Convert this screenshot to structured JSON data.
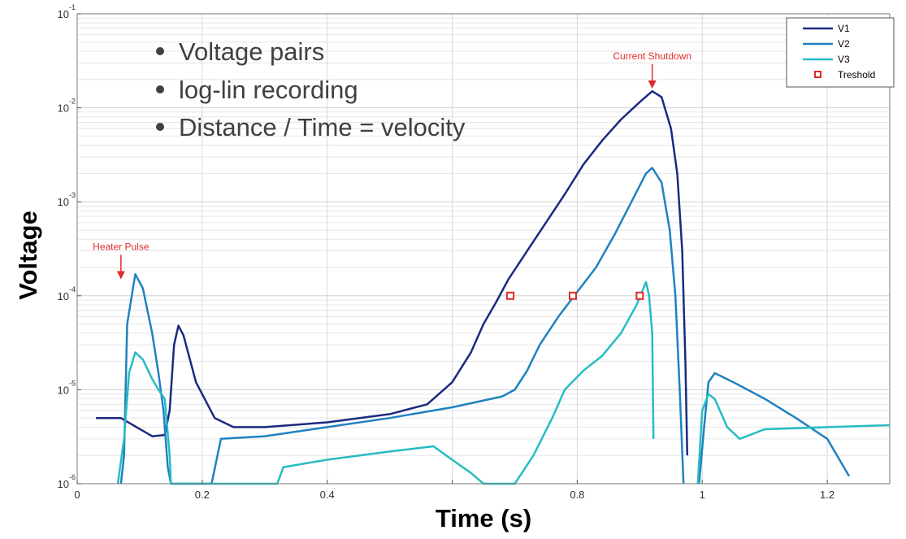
{
  "chart_data": {
    "type": "line",
    "xlabel": "Time (s)",
    "ylabel": "Voltage",
    "xlim": [
      0,
      1.3
    ],
    "ylim": [
      1e-06,
      0.1
    ],
    "yscale": "log",
    "grid": true,
    "legend_position": "top-right",
    "x_ticks": [
      0,
      0.2,
      0.4,
      0.6,
      0.8,
      1,
      1.2
    ],
    "x_tick_labels": [
      "0",
      "0.2",
      "0.4",
      "",
      "0.8",
      "1",
      "1.2"
    ],
    "y_ticks": [
      {
        "value": 1e-06,
        "base": "10",
        "exp": "-6"
      },
      {
        "value": 1e-05,
        "base": "10",
        "exp": "-5"
      },
      {
        "value": 0.0001,
        "base": "10",
        "exp": "-4"
      },
      {
        "value": 0.001,
        "base": "10",
        "exp": "-3"
      },
      {
        "value": 0.01,
        "base": "10",
        "exp": "-2"
      },
      {
        "value": 0.1,
        "base": "10",
        "exp": "-1"
      }
    ],
    "series": [
      {
        "name": "V1",
        "color": "#1b2a80",
        "points": [
          [
            0.03,
            5e-06
          ],
          [
            0.07,
            5e-06
          ],
          [
            0.095,
            4e-06
          ],
          [
            0.12,
            3.2e-06
          ],
          [
            0.14,
            3.3e-06
          ],
          [
            0.148,
            6e-06
          ],
          [
            0.155,
            3e-05
          ],
          [
            0.162,
            4.8e-05
          ],
          [
            0.17,
            3.8e-05
          ],
          [
            0.19,
            1.2e-05
          ],
          [
            0.22,
            5e-06
          ],
          [
            0.25,
            4e-06
          ],
          [
            0.3,
            4e-06
          ],
          [
            0.4,
            4.5e-06
          ],
          [
            0.5,
            5.5e-06
          ],
          [
            0.56,
            7e-06
          ],
          [
            0.6,
            1.2e-05
          ],
          [
            0.63,
            2.5e-05
          ],
          [
            0.65,
            5e-05
          ],
          [
            0.67,
            8.5e-05
          ],
          [
            0.69,
            0.00015
          ],
          [
            0.72,
            0.0003
          ],
          [
            0.75,
            0.0006
          ],
          [
            0.78,
            0.0012
          ],
          [
            0.81,
            0.0025
          ],
          [
            0.84,
            0.0045
          ],
          [
            0.87,
            0.0075
          ],
          [
            0.9,
            0.0115
          ],
          [
            0.92,
            0.015
          ],
          [
            0.935,
            0.013
          ],
          [
            0.95,
            0.006
          ],
          [
            0.96,
            0.002
          ],
          [
            0.968,
            0.0003
          ],
          [
            0.973,
            2e-05
          ],
          [
            0.976,
            2e-06
          ]
        ]
      },
      {
        "name": "V2",
        "color": "#1f82c0",
        "points": [
          [
            0.07,
            1e-06
          ],
          [
            0.075,
            2e-06
          ],
          [
            0.08,
            5e-05
          ],
          [
            0.093,
            0.00017
          ],
          [
            0.105,
            0.00012
          ],
          [
            0.12,
            4e-05
          ],
          [
            0.13,
            1.5e-05
          ],
          [
            0.138,
            6e-06
          ],
          [
            0.145,
            1.5e-06
          ],
          [
            0.15,
            1e-06
          ],
          [
            0.215,
            1e-06
          ],
          [
            0.23,
            3e-06
          ],
          [
            0.3,
            3.2e-06
          ],
          [
            0.4,
            4e-06
          ],
          [
            0.5,
            5e-06
          ],
          [
            0.6,
            6.5e-06
          ],
          [
            0.68,
            8.5e-06
          ],
          [
            0.7,
            1e-05
          ],
          [
            0.72,
            1.6e-05
          ],
          [
            0.74,
            3e-05
          ],
          [
            0.77,
            6e-05
          ],
          [
            0.8,
            0.00011
          ],
          [
            0.83,
            0.0002
          ],
          [
            0.86,
            0.00045
          ],
          [
            0.89,
            0.0011
          ],
          [
            0.91,
            0.002
          ],
          [
            0.92,
            0.0023
          ],
          [
            0.935,
            0.0016
          ],
          [
            0.948,
            0.0005
          ],
          [
            0.957,
            0.0001
          ],
          [
            0.964,
            1e-05
          ],
          [
            0.97,
            1e-06
          ]
        ]
      },
      {
        "name": "V3",
        "color": "#26bcc4",
        "points": [
          [
            0.065,
            1e-06
          ],
          [
            0.075,
            3e-06
          ],
          [
            0.083,
            1.5e-05
          ],
          [
            0.093,
            2.5e-05
          ],
          [
            0.105,
            2.1e-05
          ],
          [
            0.12,
            1.3e-05
          ],
          [
            0.13,
            1e-05
          ],
          [
            0.14,
            8e-06
          ],
          [
            0.148,
            2e-06
          ],
          [
            0.15,
            1e-06
          ],
          [
            0.32,
            1e-06
          ],
          [
            0.33,
            1.5e-06
          ],
          [
            0.4,
            1.8e-06
          ],
          [
            0.5,
            2.2e-06
          ],
          [
            0.57,
            2.5e-06
          ],
          [
            0.6,
            1.8e-06
          ],
          [
            0.63,
            1.3e-06
          ],
          [
            0.65,
            1e-06
          ],
          [
            0.7,
            1e-06
          ],
          [
            0.73,
            2e-06
          ],
          [
            0.76,
            5e-06
          ],
          [
            0.78,
            1e-05
          ],
          [
            0.81,
            1.6e-05
          ],
          [
            0.84,
            2.3e-05
          ],
          [
            0.87,
            4e-05
          ],
          [
            0.895,
            8e-05
          ],
          [
            0.91,
            0.00014
          ],
          [
            0.915,
            0.0001
          ],
          [
            0.92,
            4e-05
          ],
          [
            0.922,
            3e-06
          ]
        ]
      }
    ],
    "right_tails": [
      {
        "series": "V2",
        "points": [
          [
            0.995,
            1e-06
          ],
          [
            1.003,
            4e-06
          ],
          [
            1.01,
            1.2e-05
          ],
          [
            1.02,
            1.5e-05
          ],
          [
            1.05,
            1.2e-05
          ],
          [
            1.1,
            8e-06
          ],
          [
            1.15,
            5e-06
          ],
          [
            1.2,
            3e-06
          ],
          [
            1.235,
            1.2e-06
          ]
        ]
      },
      {
        "series": "V3",
        "points": [
          [
            0.993,
            1e-06
          ],
          [
            1.0,
            6e-06
          ],
          [
            1.01,
            9e-06
          ],
          [
            1.02,
            8e-06
          ],
          [
            1.04,
            4e-06
          ],
          [
            1.06,
            3e-06
          ],
          [
            1.1,
            3.8e-06
          ],
          [
            1.2,
            4e-06
          ],
          [
            1.3,
            4.2e-06
          ]
        ]
      }
    ],
    "threshold_markers": {
      "name": "Treshold",
      "points": [
        [
          0.693,
          0.0001
        ],
        [
          0.793,
          0.0001
        ],
        [
          0.9,
          0.0001
        ]
      ]
    },
    "annotations": [
      {
        "text": "Heater Pulse",
        "x": 0.07,
        "y": 0.00015
      },
      {
        "text": "Current Shutdown",
        "x": 0.92,
        "y": 0.016
      }
    ],
    "bullets": [
      "Voltage pairs",
      "log-lin recording",
      "Distance / Time = velocity"
    ]
  }
}
